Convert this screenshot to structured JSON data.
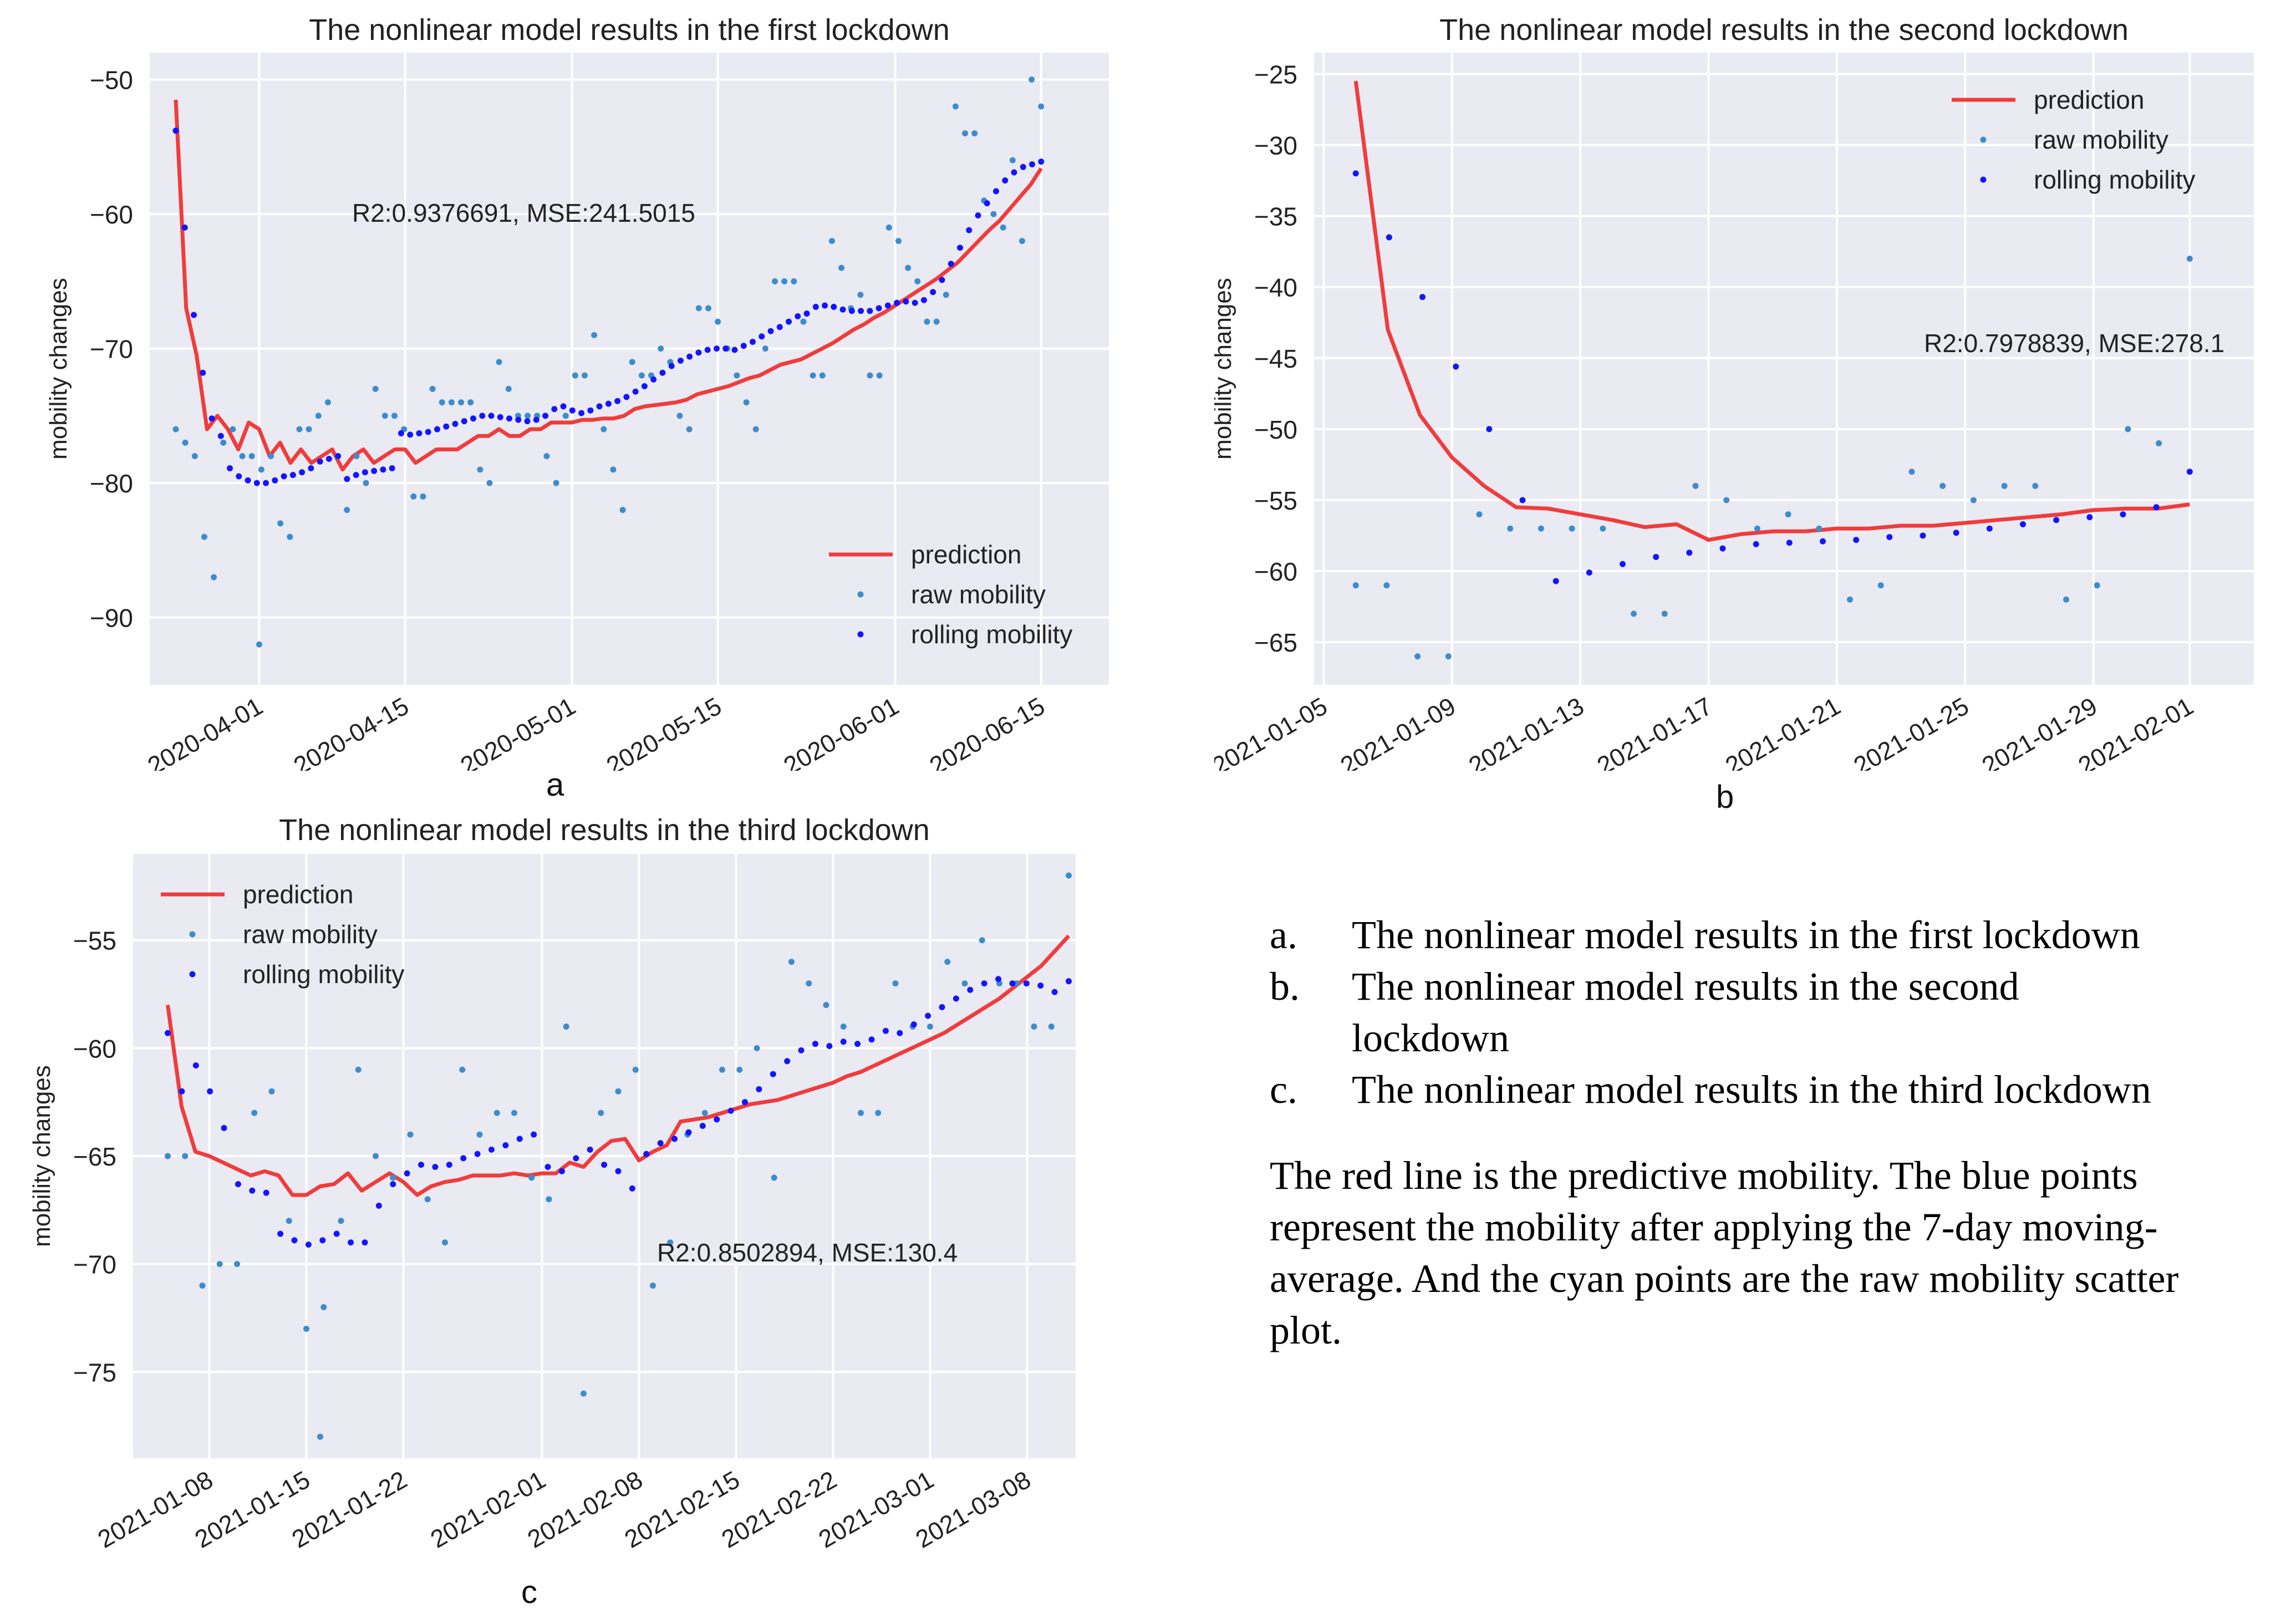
{
  "colors": {
    "plot_bg": "#eaeaf2",
    "grid": "#ffffff",
    "prediction": "#f03c3c",
    "raw": "#3d8ccc",
    "rolling": "#1414ff",
    "text": "#222222"
  },
  "legend_labels": {
    "prediction": "prediction",
    "raw": "raw mobility",
    "rolling": "rolling mobility"
  },
  "sublabels": {
    "a": "a",
    "b": "b",
    "c": "c"
  },
  "caption": {
    "items": [
      {
        "marker": "a.",
        "text": "The nonlinear model results in the first lockdown"
      },
      {
        "marker": "b.",
        "text": "The nonlinear model results in the second lockdown"
      },
      {
        "marker": "c.",
        "text": "The nonlinear model results in the third lockdown"
      }
    ],
    "paragraph": "The red line is the predictive mobility. The blue points represent the mobility after applying the 7-day moving-average. And the cyan points are the raw mobility scatter plot."
  },
  "chart_data": [
    {
      "id": "a",
      "type": "line+scatter",
      "title": "The nonlinear model results in the first lockdown",
      "xlabel": "",
      "ylabel": "mobility changes",
      "annotation": "R2:0.9376691, MSE:241.5015",
      "legend_position": "lower-right",
      "x_start": "2020-03-24",
      "x_range": [
        -2.5,
        89.5
      ],
      "ylim": [
        -95,
        -48
      ],
      "yticks": [
        -90,
        -80,
        -70,
        -60,
        -50
      ],
      "xticks": [
        {
          "day": 8,
          "label": "2020-04-01"
        },
        {
          "day": 22,
          "label": "2020-04-15"
        },
        {
          "day": 38,
          "label": "2020-05-01"
        },
        {
          "day": 52,
          "label": "2020-05-15"
        },
        {
          "day": 69,
          "label": "2020-06-01"
        },
        {
          "day": 83,
          "label": "2020-06-15"
        }
      ],
      "prediction": [
        -51.5,
        -67,
        -70.5,
        -76,
        -75,
        -76,
        -77.5,
        -75.5,
        -76,
        -78,
        -77,
        -78.5,
        -77.5,
        -78.5,
        -78,
        -77.5,
        -79,
        -78,
        -77.5,
        -78.5,
        -78,
        -77.5,
        -77.5,
        -78.5,
        -78,
        -77.5,
        -77.5,
        -77.5,
        -77,
        -76.5,
        -76.5,
        -76,
        -76.5,
        -76.5,
        -76,
        -76,
        -75.5,
        -75.5,
        -75.5,
        -75.3,
        -75.3,
        -75.2,
        -75.2,
        -75,
        -74.5,
        -74.3,
        -74.2,
        -74.1,
        -74,
        -73.8,
        -73.4,
        -73.2,
        -73,
        -72.8,
        -72.5,
        -72.2,
        -72,
        -71.6,
        -71.2,
        -71,
        -70.8,
        -70.4,
        -70,
        -69.6,
        -69.1,
        -68.6,
        -68.2,
        -67.7,
        -67.3,
        -66.8,
        -66.3,
        -65.8,
        -65.3,
        -64.8,
        -64.2,
        -63.6,
        -62.8,
        -62,
        -61.2,
        -60.5,
        -59.6,
        -58.7,
        -57.8,
        -56.6
      ],
      "raw": [
        -76,
        -77,
        -78,
        -84,
        -87,
        -77,
        -76,
        -78,
        -78,
        -79,
        -78,
        -83,
        -84,
        -76,
        -76,
        -75,
        -74,
        -78,
        -82,
        -78,
        -80,
        -73,
        -75,
        -75,
        -76,
        -81,
        -81,
        -73,
        -74,
        -74,
        -74,
        -74,
        -79,
        -80,
        -71,
        -73,
        -75,
        -75,
        -75,
        -78,
        -80,
        -75,
        -72,
        -72,
        -69,
        -76,
        -79,
        -82,
        -71,
        -72,
        -72,
        -70,
        -71,
        -75,
        -76,
        -67,
        -67,
        -68,
        -70,
        -72,
        -74,
        -76,
        -70,
        -65,
        -65,
        -65,
        -68,
        -72,
        -72,
        -62,
        -64,
        -67,
        -66,
        -72,
        -72,
        -61,
        -62,
        -64,
        -65,
        -68,
        -68,
        -66,
        -52,
        -54,
        -54,
        -59,
        -60,
        -61,
        -56,
        -62,
        -50,
        -52
      ],
      "raw_outliers": [
        {
          "day": 8,
          "value": -92
        }
      ],
      "rolling": [
        -53.8,
        -61,
        -67.5,
        -71.8,
        -75.2,
        -76.5,
        -78.9,
        -79.5,
        -79.8,
        -80,
        -80,
        -79.8,
        -79.5,
        -79.4,
        -79.2,
        -78.9,
        -78.4,
        -78.2,
        -78,
        -79.7,
        -79.4,
        -79.2,
        -79.1,
        -79,
        -78.9,
        -76.3,
        -76.4,
        -76.3,
        -76.2,
        -76,
        -75.8,
        -75.6,
        -75.4,
        -75.2,
        -75,
        -75,
        -75.1,
        -75.2,
        -75.3,
        -75.4,
        -75.3,
        -75,
        -74.5,
        -74.3,
        -74.6,
        -74.8,
        -74.6,
        -74.3,
        -74.1,
        -73.9,
        -73.6,
        -73.2,
        -72.8,
        -72.3,
        -71.8,
        -71.3,
        -70.9,
        -70.6,
        -70.3,
        -70.1,
        -70,
        -70,
        -70.1,
        -69.8,
        -69.5,
        -69.1,
        -68.7,
        -68.4,
        -68,
        -67.6,
        -67.4,
        -66.9,
        -66.8,
        -66.9,
        -67.1,
        -67.2,
        -67.2,
        -67.2,
        -67,
        -66.8,
        -66.6,
        -66.5,
        -66.6,
        -66.4,
        -65.8,
        -64.9,
        -63.7,
        -62.5,
        -61.2,
        -60.1,
        -59.2,
        -58.3,
        -57.5,
        -56.9,
        -56.5,
        -56.3,
        -56.1
      ]
    },
    {
      "id": "b",
      "type": "line+scatter",
      "title": "The nonlinear model results in the second lockdown",
      "xlabel": "",
      "ylabel": "mobility changes",
      "annotation": "R2:0.7978839, MSE:278.1",
      "legend_position": "top-right",
      "x_start": "2021-01-06",
      "x_range": [
        -1.3,
        28
      ],
      "ylim": [
        -68,
        -23.5
      ],
      "yticks": [
        -65,
        -60,
        -55,
        -50,
        -45,
        -40,
        -35,
        -30,
        -25
      ],
      "xticks": [
        {
          "day": -1,
          "label": "2021-01-05"
        },
        {
          "day": 3,
          "label": "2021-01-09"
        },
        {
          "day": 7,
          "label": "2021-01-13"
        },
        {
          "day": 11,
          "label": "2021-01-17"
        },
        {
          "day": 15,
          "label": "2021-01-21"
        },
        {
          "day": 19,
          "label": "2021-01-25"
        },
        {
          "day": 23,
          "label": "2021-01-29"
        },
        {
          "day": 26,
          "label": "2021-02-01"
        }
      ],
      "prediction": [
        -25.5,
        -43,
        -49,
        -52,
        -54,
        -55.5,
        -55.6,
        -56,
        -56.4,
        -56.9,
        -56.7,
        -57.8,
        -57.4,
        -57.2,
        -57.2,
        -57,
        -57,
        -56.8,
        -56.8,
        -56.6,
        -56.4,
        -56.2,
        -56,
        -55.7,
        -55.6,
        -55.6,
        -55.3
      ],
      "raw": [
        -61,
        -61,
        -66,
        -66,
        -56,
        -57,
        -57,
        -57,
        -57,
        -63,
        -63,
        -54,
        -55,
        -57,
        -56,
        -57,
        -62,
        -61,
        -53,
        -54,
        -55,
        -54,
        -54,
        -62,
        -61,
        -50,
        -51,
        -38
      ],
      "rolling": [
        -32,
        -36.5,
        -40.7,
        -45.6,
        -50,
        -55,
        -60.7,
        -60.1,
        -59.5,
        -59,
        -58.7,
        -58.4,
        -58.1,
        -58,
        -57.9,
        -57.8,
        -57.6,
        -57.5,
        -57.3,
        -57,
        -56.7,
        -56.4,
        -56.2,
        -56,
        -55.5,
        -53
      ]
    },
    {
      "id": "c",
      "type": "line+scatter",
      "title": "The nonlinear model results in the third lockdown",
      "xlabel": "",
      "ylabel": "mobility changes",
      "annotation": "R2:0.8502894, MSE:130.4",
      "legend_position": "top-left",
      "x_start": "2021-01-05",
      "x_range": [
        -2.5,
        65.5
      ],
      "ylim": [
        -79,
        -51
      ],
      "yticks": [
        -75,
        -70,
        -65,
        -60,
        -55
      ],
      "xticks": [
        {
          "day": 3,
          "label": "2021-01-08"
        },
        {
          "day": 10,
          "label": "2021-01-15"
        },
        {
          "day": 17,
          "label": "2021-01-22"
        },
        {
          "day": 27,
          "label": "2021-02-01"
        },
        {
          "day": 34,
          "label": "2021-02-08"
        },
        {
          "day": 41,
          "label": "2021-02-15"
        },
        {
          "day": 48,
          "label": "2021-02-22"
        },
        {
          "day": 55,
          "label": "2021-03-01"
        },
        {
          "day": 62,
          "label": "2021-03-08"
        }
      ],
      "prediction": [
        -58,
        -62.7,
        -64.8,
        -65,
        -65.3,
        -65.6,
        -65.9,
        -65.7,
        -65.9,
        -66.8,
        -66.8,
        -66.4,
        -66.3,
        -65.8,
        -66.6,
        -66.2,
        -65.8,
        -66.2,
        -66.8,
        -66.4,
        -66.2,
        -66.1,
        -65.9,
        -65.9,
        -65.9,
        -65.8,
        -65.9,
        -65.8,
        -65.8,
        -65.3,
        -65.5,
        -64.8,
        -64.3,
        -64.2,
        -65.2,
        -64.8,
        -64.5,
        -63.4,
        -63.3,
        -63.2,
        -63,
        -62.8,
        -62.6,
        -62.5,
        -62.4,
        -62.2,
        -62,
        -61.8,
        -61.6,
        -61.3,
        -61.1,
        -60.8,
        -60.5,
        -60.2,
        -59.9,
        -59.6,
        -59.3,
        -58.9,
        -58.5,
        -58.1,
        -57.7,
        -57.2,
        -56.7,
        -56.2,
        -55.5,
        -54.8
      ],
      "raw": [
        -65,
        -65,
        -71,
        -70,
        -70,
        -63,
        -62,
        -68,
        -73,
        -72,
        -68,
        -61,
        -65,
        -66,
        -64,
        -67,
        -69,
        -61,
        -64,
        -63,
        -63,
        -66,
        -67,
        -59,
        -76,
        -63,
        -62,
        -61,
        -71,
        -69,
        -64,
        -63,
        -61,
        -61,
        -60,
        -66,
        -56,
        -57,
        -58,
        -59,
        -63,
        -63,
        -57,
        -59,
        -59,
        -56,
        -57,
        -55,
        -57,
        -57,
        -59,
        -59,
        -52
      ],
      "raw_outliers": [
        {
          "day": 11,
          "value": -78
        }
      ],
      "rolling": [
        -59.3,
        -62,
        -60.8,
        -62,
        -63.7,
        -66.3,
        -66.6,
        -66.7,
        -68.6,
        -68.9,
        -69.1,
        -68.9,
        -68.6,
        -69,
        -69,
        -67.3,
        -66.3,
        -65.8,
        -65.4,
        -65.5,
        -65.4,
        -65.1,
        -64.9,
        -64.7,
        -64.5,
        -64.2,
        -64,
        -65.5,
        -65.7,
        -65.1,
        -64.7,
        -65.4,
        -65.7,
        -66.5,
        -64.9,
        -64.4,
        -64.2,
        -63.9,
        -63.6,
        -63.3,
        -62.9,
        -62.5,
        -61.9,
        -61.2,
        -60.6,
        -60.1,
        -59.8,
        -59.9,
        -59.7,
        -59.8,
        -59.6,
        -59.2,
        -59.3,
        -58.9,
        -58.5,
        -58.1,
        -57.7,
        -57.3,
        -57,
        -56.8,
        -57,
        -57,
        -57.1,
        -57.4,
        -56.9
      ]
    }
  ]
}
